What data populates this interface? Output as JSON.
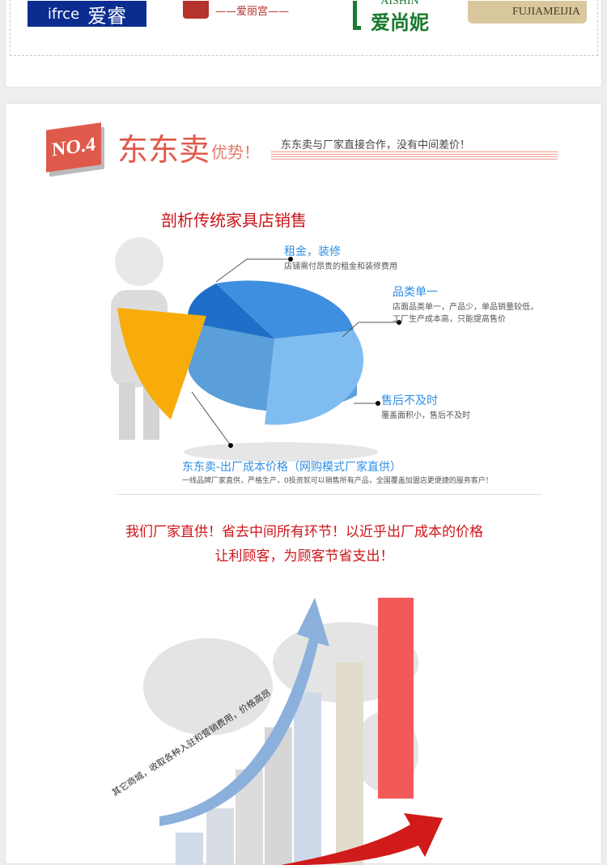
{
  "brands": [
    {
      "latin": "ifrce",
      "cn": "爱睿",
      "color": "#0b2d8f"
    },
    {
      "cn": "——爱丽宫——",
      "color": "#b5322d"
    },
    {
      "latin": "AISHIN",
      "cn": "爱尚妮",
      "color": "#1a7a2e"
    },
    {
      "latin": "FUJIAMEIJIA",
      "color": "#d9c89d"
    }
  ],
  "section": {
    "badge": "NO.4",
    "title": "东东卖",
    "title_suffix": "优势！",
    "tagline": "东东卖与厂家直接合作，没有中间差价！",
    "accent": "#e05a4b"
  },
  "analysis": {
    "heading": "剖析传统家具店销售",
    "items": [
      {
        "title": "租金，装修",
        "desc": "店铺需付昂贵的租金和装修费用"
      },
      {
        "title": "品类单一",
        "desc": "店面品类单一，产品少，单品销量较低，",
        "desc2": "工厂生产成本高，只能提高售价"
      },
      {
        "title": "售后不及时",
        "desc": "覆盖面积小，售后不及时"
      },
      {
        "title": "东东卖-出厂成本价格（网购模式厂家直供）",
        "desc": "一线品牌厂家直供，严格生产，0投资就可以销售所有产品，全国覆盖加盟店更便捷的服务客户！"
      }
    ]
  },
  "slogan": {
    "line1": "我们厂家直供！省去中间所有环节！以近乎出厂成本的价格",
    "line2": "让利顾客，为顾客节省支出！",
    "color": "#d0141a"
  },
  "arrow_text": "其它商城，收取各种入驻和营销费用，价格高昂"
}
